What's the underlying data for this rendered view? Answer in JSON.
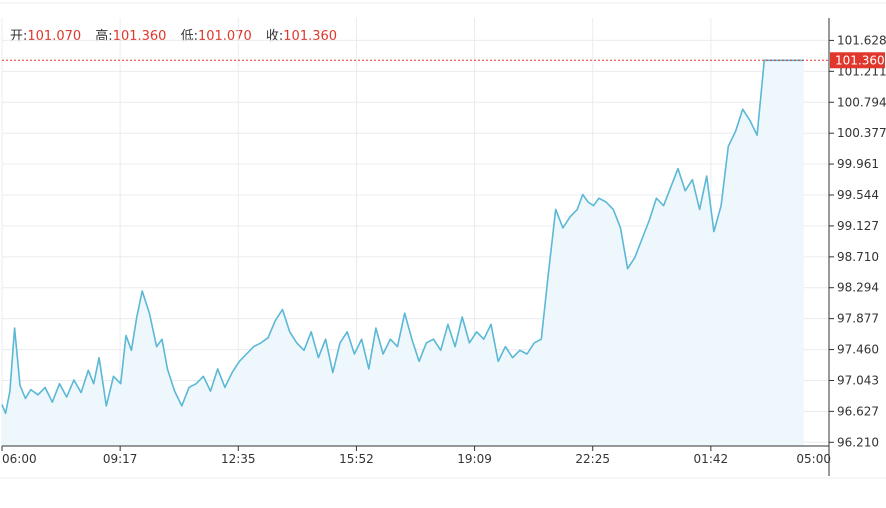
{
  "ohlc": {
    "open_label": "开:",
    "open_value": "101.070",
    "high_label": "高:",
    "high_value": "101.360",
    "low_label": "低:",
    "low_value": "101.070",
    "close_label": "收:",
    "close_value": "101.360"
  },
  "chart_data": {
    "type": "area",
    "title": "",
    "xlabel": "",
    "ylabel": "",
    "grid": true,
    "x_ticks": [
      "06:00",
      "09:17",
      "12:35",
      "15:52",
      "19:09",
      "22:25",
      "01:42",
      "05:00"
    ],
    "y_ticks": [
      "101.628",
      "101.211",
      "100.794",
      "100.377",
      "99.961",
      "99.544",
      "99.127",
      "98.710",
      "98.294",
      "97.877",
      "97.460",
      "97.043",
      "96.627",
      "96.210"
    ],
    "ylim": [
      96.16,
      101.93
    ],
    "x_range_hours": [
      0,
      23
    ],
    "last_price": 101.36,
    "last_price_label": "101.360",
    "colors": {
      "line": "#5bb8d6",
      "fill": "#eef7fc",
      "last_price": "#e0362b",
      "grid": "#e9ecef",
      "axis": "#333333"
    },
    "series": [
      {
        "x_hours": [
          0.0,
          0.1,
          0.22,
          0.35,
          0.5,
          0.65,
          0.8,
          1.0,
          1.2,
          1.4,
          1.6,
          1.8,
          2.0,
          2.2,
          2.4,
          2.55,
          2.7,
          2.9,
          3.1,
          3.3,
          3.45,
          3.6,
          3.75,
          3.9,
          4.1,
          4.3,
          4.45,
          4.6,
          4.8,
          5.0,
          5.2,
          5.4,
          5.6,
          5.8,
          6.0,
          6.2,
          6.4,
          6.6,
          6.8,
          7.0,
          7.2,
          7.4,
          7.6,
          7.8,
          8.0,
          8.2,
          8.4,
          8.6,
          8.8,
          9.0,
          9.2,
          9.4,
          9.6,
          9.8,
          10.0,
          10.2,
          10.4,
          10.6,
          10.8,
          11.0,
          11.2,
          11.4,
          11.6,
          11.8,
          12.0,
          12.2,
          12.4,
          12.6,
          12.8,
          13.0,
          13.2,
          13.4,
          13.6,
          13.8,
          14.0,
          14.2,
          14.4,
          14.6,
          14.8,
          15.0,
          15.2,
          15.4,
          15.6,
          15.8,
          16.0,
          16.15,
          16.3,
          16.45,
          16.6,
          16.8,
          17.0,
          17.2,
          17.4,
          17.6,
          17.8,
          18.0,
          18.2,
          18.4,
          18.6,
          18.8,
          19.0,
          19.2,
          19.4,
          19.6,
          19.8,
          20.0,
          20.2,
          20.4,
          20.6,
          20.8,
          21.0,
          21.2,
          21.4,
          21.6,
          21.8,
          22.0,
          22.2,
          22.3
        ],
        "values": [
          96.72,
          96.6,
          96.9,
          97.75,
          96.98,
          96.8,
          96.92,
          96.85,
          96.95,
          96.75,
          97.0,
          96.82,
          97.05,
          96.88,
          97.18,
          97.0,
          97.35,
          96.7,
          97.1,
          97.0,
          97.65,
          97.45,
          97.9,
          98.25,
          97.95,
          97.5,
          97.6,
          97.2,
          96.9,
          96.7,
          96.95,
          97.0,
          97.1,
          96.9,
          97.2,
          96.95,
          97.15,
          97.3,
          97.4,
          97.5,
          97.55,
          97.62,
          97.85,
          98.0,
          97.7,
          97.55,
          97.45,
          97.7,
          97.35,
          97.6,
          97.15,
          97.55,
          97.7,
          97.4,
          97.6,
          97.2,
          97.75,
          97.4,
          97.6,
          97.5,
          97.95,
          97.6,
          97.3,
          97.55,
          97.6,
          97.45,
          97.8,
          97.5,
          97.9,
          97.55,
          97.7,
          97.6,
          97.8,
          97.3,
          97.5,
          97.35,
          97.45,
          97.4,
          97.55,
          97.6,
          98.5,
          99.35,
          99.1,
          99.25,
          99.35,
          99.55,
          99.45,
          99.4,
          99.5,
          99.45,
          99.35,
          99.1,
          98.55,
          98.7,
          98.95,
          99.2,
          99.5,
          99.4,
          99.65,
          99.9,
          99.6,
          99.75,
          99.35,
          99.8,
          99.05,
          99.4,
          100.2,
          100.4,
          100.7,
          100.55,
          100.35,
          101.36,
          101.36,
          101.36,
          101.36,
          101.36,
          101.36,
          101.36
        ]
      }
    ]
  }
}
